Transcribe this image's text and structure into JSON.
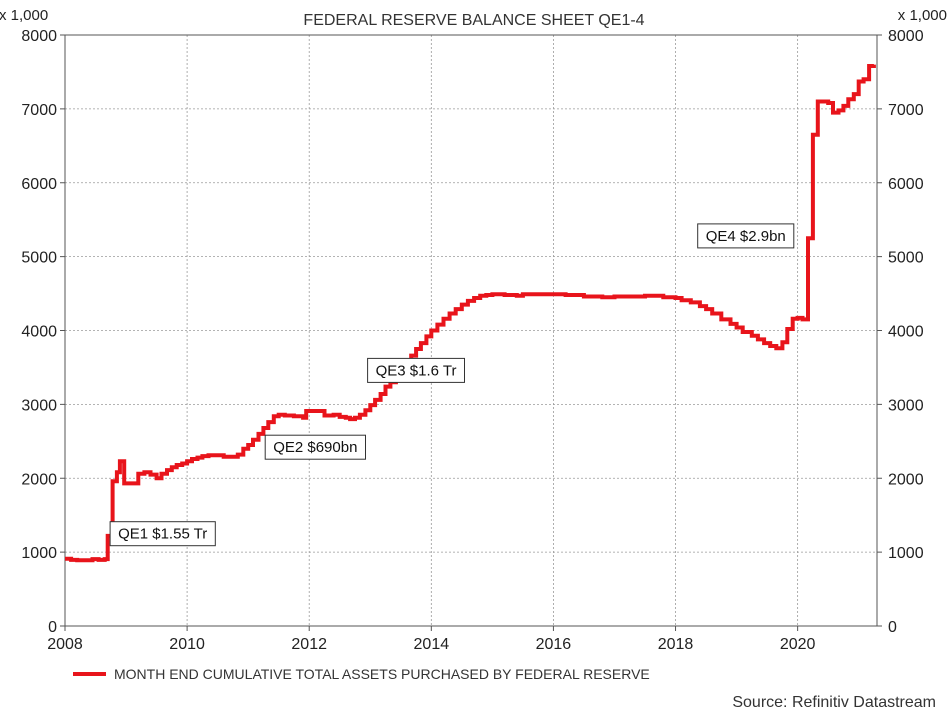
{
  "chart_data": {
    "type": "line",
    "title": "FEDERAL RESERVE BALANCE SHEET QE1-4",
    "unit_label_left": "x 1,000",
    "unit_label_right": "x 1,000",
    "ylim": [
      0,
      8000
    ],
    "xlim": [
      2008,
      2021.3
    ],
    "y_ticks": [
      "0",
      "1000",
      "2000",
      "3000",
      "4000",
      "5000",
      "6000",
      "7000",
      "8000"
    ],
    "y_tick_values": [
      0,
      1000,
      2000,
      3000,
      4000,
      5000,
      6000,
      7000,
      8000
    ],
    "x_ticks": [
      "2008",
      "2010",
      "2012",
      "2014",
      "2016",
      "2018",
      "2020"
    ],
    "x_tick_values": [
      2008,
      2010,
      2012,
      2014,
      2016,
      2018,
      2020
    ],
    "grid": true,
    "series": [
      {
        "name": "MONTH END CUMULATIVE TOTAL ASSETS PURCHASED BY FEDERAL RESERVE",
        "color": "#e8141b",
        "step": true,
        "points": [
          [
            2008.0,
            910
          ],
          [
            2008.1,
            895
          ],
          [
            2008.2,
            890
          ],
          [
            2008.35,
            890
          ],
          [
            2008.45,
            905
          ],
          [
            2008.55,
            895
          ],
          [
            2008.65,
            905
          ],
          [
            2008.7,
            1220
          ],
          [
            2008.78,
            1960
          ],
          [
            2008.85,
            2080
          ],
          [
            2008.9,
            2230
          ],
          [
            2008.97,
            1930
          ],
          [
            2009.1,
            1930
          ],
          [
            2009.2,
            2060
          ],
          [
            2009.3,
            2080
          ],
          [
            2009.4,
            2050
          ],
          [
            2009.5,
            2000
          ],
          [
            2009.58,
            2060
          ],
          [
            2009.67,
            2110
          ],
          [
            2009.75,
            2150
          ],
          [
            2009.83,
            2180
          ],
          [
            2009.92,
            2200
          ],
          [
            2010.0,
            2230
          ],
          [
            2010.08,
            2260
          ],
          [
            2010.17,
            2280
          ],
          [
            2010.25,
            2300
          ],
          [
            2010.35,
            2310
          ],
          [
            2010.5,
            2310
          ],
          [
            2010.6,
            2290
          ],
          [
            2010.75,
            2290
          ],
          [
            2010.83,
            2320
          ],
          [
            2010.92,
            2400
          ],
          [
            2011.0,
            2450
          ],
          [
            2011.08,
            2520
          ],
          [
            2011.17,
            2600
          ],
          [
            2011.25,
            2680
          ],
          [
            2011.33,
            2760
          ],
          [
            2011.42,
            2840
          ],
          [
            2011.5,
            2860
          ],
          [
            2011.6,
            2850
          ],
          [
            2011.75,
            2840
          ],
          [
            2011.9,
            2820
          ],
          [
            2011.95,
            2910
          ],
          [
            2012.15,
            2910
          ],
          [
            2012.25,
            2850
          ],
          [
            2012.4,
            2860
          ],
          [
            2012.5,
            2830
          ],
          [
            2012.6,
            2820
          ],
          [
            2012.67,
            2800
          ],
          [
            2012.75,
            2820
          ],
          [
            2012.83,
            2860
          ],
          [
            2012.92,
            2920
          ],
          [
            2013.0,
            2990
          ],
          [
            2013.08,
            3060
          ],
          [
            2013.17,
            3140
          ],
          [
            2013.25,
            3240
          ],
          [
            2013.33,
            3300
          ],
          [
            2013.42,
            3380
          ],
          [
            2013.5,
            3480
          ],
          [
            2013.58,
            3570
          ],
          [
            2013.67,
            3660
          ],
          [
            2013.75,
            3750
          ],
          [
            2013.83,
            3830
          ],
          [
            2013.92,
            3920
          ],
          [
            2014.0,
            4000
          ],
          [
            2014.1,
            4080
          ],
          [
            2014.2,
            4160
          ],
          [
            2014.3,
            4230
          ],
          [
            2014.4,
            4290
          ],
          [
            2014.5,
            4350
          ],
          [
            2014.6,
            4400
          ],
          [
            2014.7,
            4440
          ],
          [
            2014.8,
            4470
          ],
          [
            2014.9,
            4480
          ],
          [
            2015.0,
            4490
          ],
          [
            2015.1,
            4490
          ],
          [
            2015.2,
            4480
          ],
          [
            2015.4,
            4470
          ],
          [
            2015.5,
            4490
          ],
          [
            2016.0,
            4490
          ],
          [
            2016.2,
            4480
          ],
          [
            2016.5,
            4460
          ],
          [
            2016.8,
            4450
          ],
          [
            2017.0,
            4460
          ],
          [
            2017.3,
            4460
          ],
          [
            2017.5,
            4470
          ],
          [
            2017.8,
            4450
          ],
          [
            2018.0,
            4440
          ],
          [
            2018.1,
            4410
          ],
          [
            2018.25,
            4380
          ],
          [
            2018.4,
            4330
          ],
          [
            2018.5,
            4290
          ],
          [
            2018.6,
            4230
          ],
          [
            2018.75,
            4150
          ],
          [
            2018.9,
            4090
          ],
          [
            2019.0,
            4040
          ],
          [
            2019.1,
            3980
          ],
          [
            2019.25,
            3930
          ],
          [
            2019.35,
            3880
          ],
          [
            2019.45,
            3830
          ],
          [
            2019.55,
            3790
          ],
          [
            2019.65,
            3760
          ],
          [
            2019.75,
            3840
          ],
          [
            2019.83,
            4020
          ],
          [
            2019.92,
            4160
          ],
          [
            2020.0,
            4170
          ],
          [
            2020.08,
            4150
          ],
          [
            2020.17,
            5250
          ],
          [
            2020.25,
            6650
          ],
          [
            2020.33,
            7100
          ],
          [
            2020.5,
            7080
          ],
          [
            2020.58,
            6950
          ],
          [
            2020.67,
            6980
          ],
          [
            2020.75,
            7040
          ],
          [
            2020.83,
            7130
          ],
          [
            2020.92,
            7200
          ],
          [
            2021.0,
            7370
          ],
          [
            2021.08,
            7400
          ],
          [
            2021.17,
            7580
          ],
          [
            2021.25,
            7600
          ]
        ]
      }
    ],
    "annotations": [
      {
        "text": "QE1 $1.55 Tr",
        "x": 2009.6,
        "y": 1250
      },
      {
        "text": "QE2 $690bn",
        "x": 2012.1,
        "y": 2420
      },
      {
        "text": "QE3 $1.6 Tr",
        "x": 2013.75,
        "y": 3460
      },
      {
        "text": "QE4 $2.9bn",
        "x": 2019.15,
        "y": 5280
      }
    ],
    "legend": {
      "position": "bottom-left",
      "label": "MONTH END CUMULATIVE TOTAL ASSETS PURCHASED BY FEDERAL RESERVE"
    },
    "source": "Source: Refinitiv Datastream"
  }
}
